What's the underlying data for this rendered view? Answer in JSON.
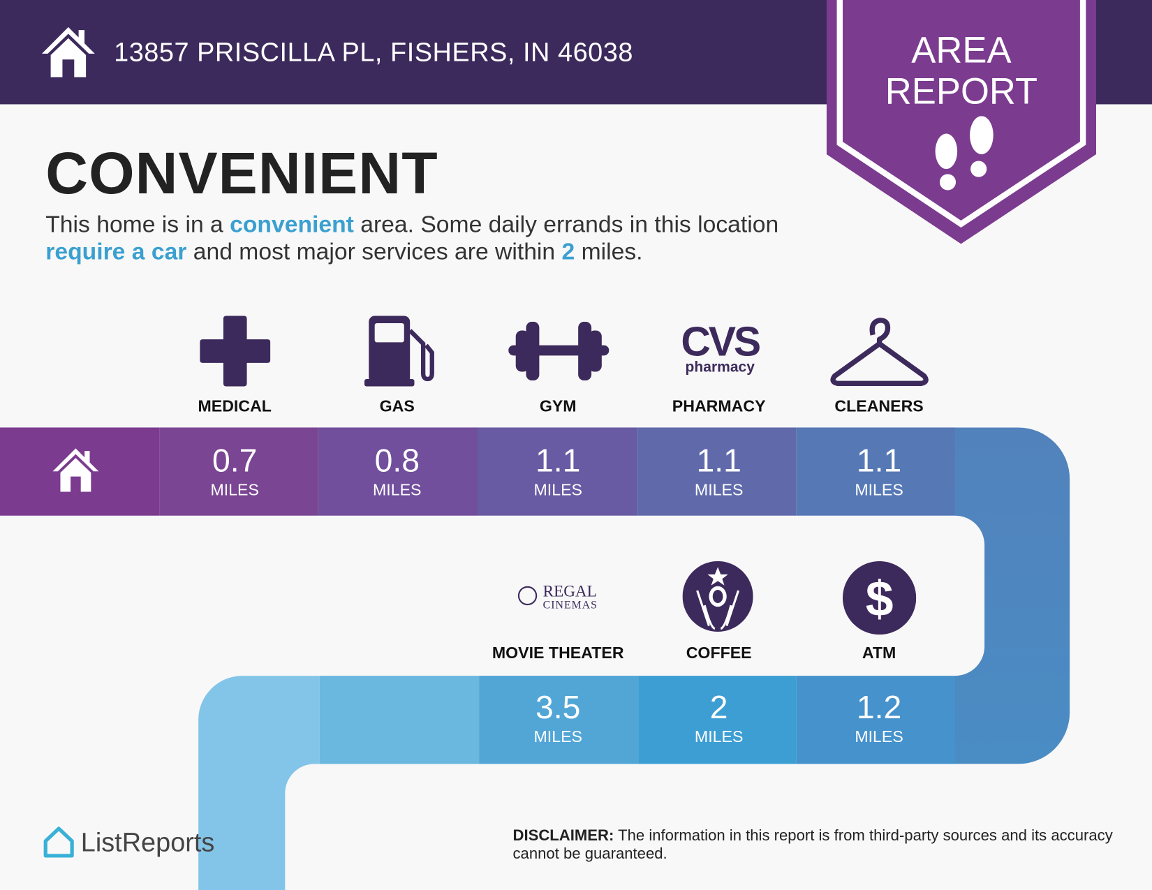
{
  "header": {
    "address": "13857 PRISCILLA PL, FISHERS, IN 46038",
    "icon": "home-icon",
    "color": "#3d2a5c"
  },
  "ribbon": {
    "line1": "AREA",
    "line2": "REPORT",
    "icon": "footprints-icon",
    "color": "#7b3b8f"
  },
  "title": "CONVENIENT",
  "summary": {
    "t1": "This home is in a ",
    "h1": "convenient",
    "t2": " area. Some daily errands in this location ",
    "h2": "require a car",
    "t3": " and most major services are within ",
    "h3": "2",
    "t4": " miles.",
    "highlight_color": "#3aa0d0"
  },
  "row1": [
    {
      "label": "MEDICAL",
      "value": "0.7",
      "unit": "MILES",
      "icon": "medical-cross-icon"
    },
    {
      "label": "GAS",
      "value": "0.8",
      "unit": "MILES",
      "icon": "gas-pump-icon"
    },
    {
      "label": "GYM",
      "value": "1.1",
      "unit": "MILES",
      "icon": "dumbbell-icon"
    },
    {
      "label": "PHARMACY",
      "value": "1.1",
      "unit": "MILES",
      "icon": "cvs-pharmacy-logo",
      "logo_text": "CVS pharmacy"
    },
    {
      "label": "CLEANERS",
      "value": "1.1",
      "unit": "MILES",
      "icon": "hanger-icon"
    }
  ],
  "row2": [
    {
      "label": "MOVIE THEATER",
      "value": "3.5",
      "unit": "MILES",
      "icon": "regal-cinemas-logo",
      "logo_text": "REGAL CINEMAS"
    },
    {
      "label": "COFFEE",
      "value": "2",
      "unit": "MILES",
      "icon": "starbucks-logo"
    },
    {
      "label": "ATM",
      "value": "1.2",
      "unit": "MILES",
      "icon": "dollar-icon"
    }
  ],
  "footer": {
    "brand": "ListReports",
    "disclaimer_label": "DISCLAIMER:",
    "disclaimer": " The information in this report is from third-party sources and its accuracy cannot be guaranteed."
  }
}
